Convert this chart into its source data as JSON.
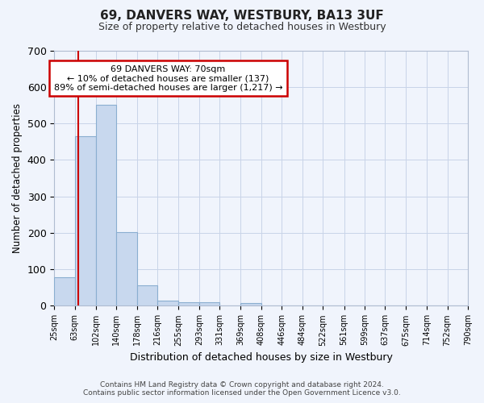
{
  "title": "69, DANVERS WAY, WESTBURY, BA13 3UF",
  "subtitle": "Size of property relative to detached houses in Westbury",
  "xlabel": "Distribution of detached houses by size in Westbury",
  "ylabel": "Number of detached properties",
  "footer_line1": "Contains HM Land Registry data © Crown copyright and database right 2024.",
  "footer_line2": "Contains public sector information licensed under the Open Government Licence v3.0.",
  "bar_edges": [
    25,
    63,
    102,
    140,
    178,
    216,
    255,
    293,
    331,
    369,
    408,
    446,
    484,
    522,
    561,
    599,
    637,
    675,
    714,
    752,
    790
  ],
  "bar_heights": [
    78,
    465,
    550,
    203,
    57,
    15,
    10,
    10,
    0,
    8,
    0,
    0,
    0,
    0,
    0,
    0,
    0,
    0,
    0,
    0
  ],
  "bar_color": "#c8d8ee",
  "bar_edgecolor": "#8aaed0",
  "property_size": 70,
  "vline_color": "#cc0000",
  "annotation_text": "69 DANVERS WAY: 70sqm\n← 10% of detached houses are smaller (137)\n89% of semi-detached houses are larger (1,217) →",
  "annotation_box_facecolor": "#ffffff",
  "annotation_box_edgecolor": "#cc0000",
  "ylim": [
    0,
    700
  ],
  "yticks": [
    0,
    100,
    200,
    300,
    400,
    500,
    600,
    700
  ],
  "grid_color": "#c8d4e8",
  "fig_bg_color": "#f0f4fc",
  "plot_bg_color": "#f0f4fc"
}
